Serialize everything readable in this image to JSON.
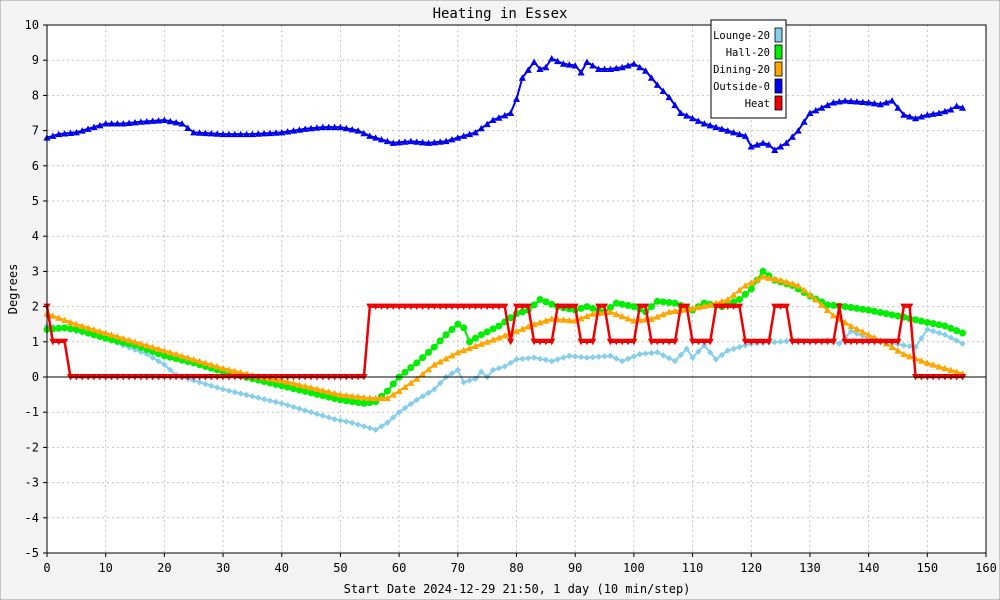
{
  "chart_data": {
    "type": "line",
    "title": "Heating in Essex",
    "xlabel": "Start Date 2024-12-29 21:50, 1 day (10 min/step)",
    "ylabel": "Degrees",
    "xlim": [
      0,
      160
    ],
    "ylim": [
      -5,
      10
    ],
    "x_ticks": [
      0,
      10,
      20,
      30,
      40,
      50,
      60,
      70,
      80,
      90,
      100,
      110,
      120,
      130,
      140,
      150,
      160
    ],
    "y_ticks": [
      -5,
      -4,
      -3,
      -2,
      -1,
      0,
      1,
      2,
      3,
      4,
      5,
      6,
      7,
      8,
      9,
      10
    ],
    "grid": true,
    "legend_position": "top-right",
    "series": [
      {
        "name": "Lounge-20",
        "color": "#87ceeb",
        "marker": "diamond",
        "points": [
          [
            0,
            1.45
          ],
          [
            2,
            1.4
          ],
          [
            5,
            1.3
          ],
          [
            10,
            1.1
          ],
          [
            13,
            0.9
          ],
          [
            17,
            0.65
          ],
          [
            20,
            0.35
          ],
          [
            22,
            0.05
          ],
          [
            26,
            -0.15
          ],
          [
            30,
            -0.35
          ],
          [
            35,
            -0.55
          ],
          [
            40,
            -0.75
          ],
          [
            45,
            -1.0
          ],
          [
            49,
            -1.2
          ],
          [
            52,
            -1.3
          ],
          [
            54,
            -1.4
          ],
          [
            56,
            -1.5
          ],
          [
            58,
            -1.3
          ],
          [
            60,
            -1.0
          ],
          [
            63,
            -0.65
          ],
          [
            66,
            -0.35
          ],
          [
            68,
            0.0
          ],
          [
            70,
            0.2
          ],
          [
            71,
            -0.15
          ],
          [
            73,
            -0.05
          ],
          [
            74,
            0.15
          ],
          [
            75,
            0.0
          ],
          [
            76,
            0.2
          ],
          [
            78,
            0.3
          ],
          [
            80,
            0.5
          ],
          [
            83,
            0.55
          ],
          [
            86,
            0.45
          ],
          [
            89,
            0.6
          ],
          [
            92,
            0.55
          ],
          [
            96,
            0.6
          ],
          [
            98,
            0.45
          ],
          [
            101,
            0.65
          ],
          [
            104,
            0.7
          ],
          [
            107,
            0.45
          ],
          [
            109,
            0.8
          ],
          [
            110,
            0.55
          ],
          [
            112,
            0.9
          ],
          [
            114,
            0.5
          ],
          [
            116,
            0.75
          ],
          [
            118,
            0.85
          ],
          [
            120,
            0.95
          ],
          [
            125,
            1.0
          ],
          [
            128,
            1.05
          ],
          [
            130,
            1.0
          ],
          [
            133,
            1.05
          ],
          [
            135,
            0.95
          ],
          [
            137,
            1.3
          ],
          [
            140,
            1.1
          ],
          [
            143,
            1.0
          ],
          [
            146,
            0.9
          ],
          [
            148,
            0.85
          ],
          [
            150,
            1.35
          ],
          [
            153,
            1.2
          ],
          [
            156,
            0.95
          ]
        ]
      },
      {
        "name": "Hall-20",
        "color": "#00ee00",
        "marker": "circle",
        "points": [
          [
            0,
            1.35
          ],
          [
            3,
            1.4
          ],
          [
            5,
            1.35
          ],
          [
            10,
            1.1
          ],
          [
            15,
            0.9
          ],
          [
            20,
            0.6
          ],
          [
            25,
            0.4
          ],
          [
            30,
            0.15
          ],
          [
            35,
            -0.05
          ],
          [
            40,
            -0.25
          ],
          [
            45,
            -0.45
          ],
          [
            50,
            -0.65
          ],
          [
            54,
            -0.75
          ],
          [
            56,
            -0.7
          ],
          [
            58,
            -0.4
          ],
          [
            60,
            0.0
          ],
          [
            63,
            0.4
          ],
          [
            66,
            0.85
          ],
          [
            68,
            1.2
          ],
          [
            70,
            1.5
          ],
          [
            71,
            1.4
          ],
          [
            72,
            1.0
          ],
          [
            74,
            1.2
          ],
          [
            77,
            1.45
          ],
          [
            80,
            1.8
          ],
          [
            82,
            1.9
          ],
          [
            84,
            2.2
          ],
          [
            87,
            2.0
          ],
          [
            90,
            1.9
          ],
          [
            92,
            2.0
          ],
          [
            95,
            1.85
          ],
          [
            97,
            2.1
          ],
          [
            100,
            2.0
          ],
          [
            102,
            1.85
          ],
          [
            104,
            2.15
          ],
          [
            107,
            2.1
          ],
          [
            110,
            1.9
          ],
          [
            112,
            2.1
          ],
          [
            115,
            2.0
          ],
          [
            118,
            2.2
          ],
          [
            120,
            2.5
          ],
          [
            122,
            3.0
          ],
          [
            124,
            2.75
          ],
          [
            127,
            2.6
          ],
          [
            130,
            2.3
          ],
          [
            133,
            2.05
          ],
          [
            136,
            2.0
          ],
          [
            140,
            1.9
          ],
          [
            143,
            1.8
          ],
          [
            146,
            1.7
          ],
          [
            150,
            1.55
          ],
          [
            153,
            1.45
          ],
          [
            156,
            1.25
          ]
        ]
      },
      {
        "name": "Dining-20",
        "color": "#ffa500",
        "marker": "triangle",
        "points": [
          [
            0,
            1.8
          ],
          [
            5,
            1.5
          ],
          [
            10,
            1.25
          ],
          [
            15,
            1.0
          ],
          [
            20,
            0.75
          ],
          [
            25,
            0.5
          ],
          [
            30,
            0.25
          ],
          [
            35,
            0.05
          ],
          [
            40,
            -0.1
          ],
          [
            45,
            -0.3
          ],
          [
            50,
            -0.5
          ],
          [
            55,
            -0.6
          ],
          [
            58,
            -0.6
          ],
          [
            60,
            -0.4
          ],
          [
            63,
            -0.05
          ],
          [
            66,
            0.35
          ],
          [
            70,
            0.7
          ],
          [
            75,
            1.0
          ],
          [
            80,
            1.3
          ],
          [
            83,
            1.5
          ],
          [
            86,
            1.65
          ],
          [
            90,
            1.6
          ],
          [
            93,
            1.8
          ],
          [
            96,
            1.85
          ],
          [
            100,
            1.6
          ],
          [
            103,
            1.65
          ],
          [
            106,
            1.85
          ],
          [
            110,
            1.95
          ],
          [
            113,
            2.05
          ],
          [
            116,
            2.2
          ],
          [
            119,
            2.6
          ],
          [
            122,
            2.85
          ],
          [
            125,
            2.75
          ],
          [
            128,
            2.6
          ],
          [
            131,
            2.2
          ],
          [
            134,
            1.75
          ],
          [
            137,
            1.45
          ],
          [
            140,
            1.2
          ],
          [
            143,
            0.95
          ],
          [
            146,
            0.65
          ],
          [
            150,
            0.4
          ],
          [
            153,
            0.25
          ],
          [
            156,
            0.1
          ]
        ]
      },
      {
        "name": "Outside-0",
        "color": "#0000ee",
        "marker": "triangle",
        "points": [
          [
            0,
            6.8
          ],
          [
            2,
            6.9
          ],
          [
            5,
            6.95
          ],
          [
            8,
            7.1
          ],
          [
            10,
            7.2
          ],
          [
            13,
            7.2
          ],
          [
            16,
            7.25
          ],
          [
            20,
            7.3
          ],
          [
            23,
            7.2
          ],
          [
            25,
            6.95
          ],
          [
            30,
            6.9
          ],
          [
            35,
            6.9
          ],
          [
            40,
            6.95
          ],
          [
            44,
            7.05
          ],
          [
            47,
            7.1
          ],
          [
            50,
            7.1
          ],
          [
            53,
            7.0
          ],
          [
            55,
            6.85
          ],
          [
            57,
            6.75
          ],
          [
            59,
            6.65
          ],
          [
            62,
            6.7
          ],
          [
            65,
            6.65
          ],
          [
            68,
            6.7
          ],
          [
            70,
            6.8
          ],
          [
            73,
            6.95
          ],
          [
            76,
            7.3
          ],
          [
            79,
            7.5
          ],
          [
            80,
            7.9
          ],
          [
            81,
            8.5
          ],
          [
            83,
            8.95
          ],
          [
            84,
            8.75
          ],
          [
            85,
            8.8
          ],
          [
            86,
            9.05
          ],
          [
            88,
            8.9
          ],
          [
            90,
            8.85
          ],
          [
            91,
            8.65
          ],
          [
            92,
            8.95
          ],
          [
            94,
            8.75
          ],
          [
            96,
            8.75
          ],
          [
            98,
            8.8
          ],
          [
            100,
            8.9
          ],
          [
            102,
            8.7
          ],
          [
            104,
            8.3
          ],
          [
            106,
            7.95
          ],
          [
            108,
            7.5
          ],
          [
            110,
            7.35
          ],
          [
            112,
            7.2
          ],
          [
            115,
            7.05
          ],
          [
            117,
            6.95
          ],
          [
            119,
            6.85
          ],
          [
            120,
            6.55
          ],
          [
            122,
            6.65
          ],
          [
            123,
            6.6
          ],
          [
            124,
            6.45
          ],
          [
            126,
            6.65
          ],
          [
            128,
            7.0
          ],
          [
            130,
            7.5
          ],
          [
            132,
            7.65
          ],
          [
            134,
            7.8
          ],
          [
            136,
            7.85
          ],
          [
            140,
            7.8
          ],
          [
            142,
            7.75
          ],
          [
            144,
            7.85
          ],
          [
            146,
            7.45
          ],
          [
            148,
            7.35
          ],
          [
            150,
            7.45
          ],
          [
            152,
            7.5
          ],
          [
            154,
            7.6
          ],
          [
            155,
            7.7
          ],
          [
            156,
            7.65
          ]
        ]
      },
      {
        "name": "Heat",
        "color": "#ee0000",
        "marker": "triangle-down",
        "points": [
          [
            0,
            2
          ],
          [
            1,
            1
          ],
          [
            3,
            1
          ],
          [
            4,
            0
          ],
          [
            54,
            0
          ],
          [
            55,
            2
          ],
          [
            78,
            2
          ],
          [
            79,
            1
          ],
          [
            80,
            2
          ],
          [
            81,
            2
          ],
          [
            82,
            2
          ],
          [
            83,
            1
          ],
          [
            86,
            1
          ],
          [
            87,
            2
          ],
          [
            90,
            2
          ],
          [
            91,
            1
          ],
          [
            93,
            1
          ],
          [
            94,
            2
          ],
          [
            95,
            2
          ],
          [
            96,
            1
          ],
          [
            100,
            1
          ],
          [
            101,
            2
          ],
          [
            102,
            2
          ],
          [
            103,
            1
          ],
          [
            107,
            1
          ],
          [
            108,
            2
          ],
          [
            109,
            2
          ],
          [
            110,
            1
          ],
          [
            113,
            1
          ],
          [
            114,
            2
          ],
          [
            118,
            2
          ],
          [
            119,
            1
          ],
          [
            123,
            1
          ],
          [
            124,
            2
          ],
          [
            126,
            2
          ],
          [
            127,
            1
          ],
          [
            134,
            1
          ],
          [
            135,
            2
          ],
          [
            136,
            1
          ],
          [
            145,
            1
          ],
          [
            146,
            2
          ],
          [
            147,
            2
          ],
          [
            148,
            0
          ],
          [
            156,
            0
          ]
        ]
      }
    ]
  }
}
